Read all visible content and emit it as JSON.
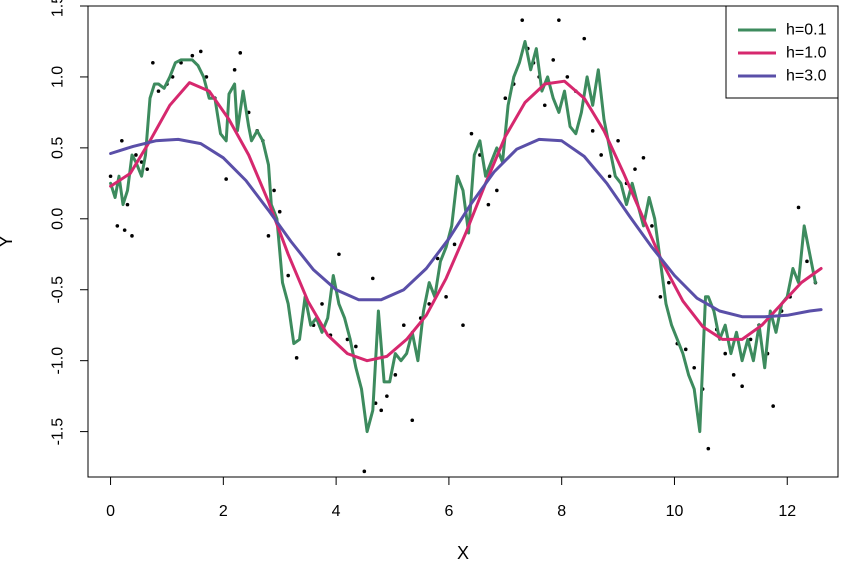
{
  "chart_data": {
    "type": "scatter",
    "title": "",
    "xlabel": "X",
    "ylabel": "Y",
    "xlim": [
      -0.4,
      12.9
    ],
    "ylim": [
      -1.82,
      1.5
    ],
    "x_ticks": [
      0,
      2,
      4,
      6,
      8,
      10,
      12
    ],
    "x_tick_labels": [
      "0",
      "2",
      "4",
      "6",
      "8",
      "10",
      "12"
    ],
    "y_ticks": [
      -1.5,
      -1.0,
      -0.5,
      0.0,
      0.5,
      1.0,
      1.5
    ],
    "y_tick_labels": [
      "-1.5",
      "-1.0",
      "-0.5",
      "0.0",
      "0.5",
      "1.0",
      "1.5"
    ],
    "grid": false,
    "legend_position": "top-right",
    "points": {
      "color": "#000000",
      "x": [
        0.0,
        0.12,
        0.2,
        0.25,
        0.3,
        0.38,
        0.45,
        0.55,
        0.65,
        0.75,
        0.85,
        1.0,
        1.1,
        1.25,
        1.45,
        1.6,
        1.7,
        1.85,
        2.05,
        2.2,
        2.3,
        2.45,
        2.6,
        2.7,
        2.8,
        2.9,
        3.0,
        3.15,
        3.3,
        3.45,
        3.6,
        3.75,
        3.9,
        4.05,
        4.2,
        4.35,
        4.5,
        4.65,
        4.7,
        4.8,
        4.9,
        5.05,
        5.2,
        5.35,
        5.5,
        5.65,
        5.8,
        5.95,
        6.1,
        6.25,
        6.4,
        6.55,
        6.7,
        6.85,
        7.0,
        7.15,
        7.3,
        7.4,
        7.5,
        7.6,
        7.7,
        7.85,
        7.95,
        8.1,
        8.25,
        8.4,
        8.55,
        8.7,
        8.85,
        9.0,
        9.15,
        9.3,
        9.45,
        9.6,
        9.75,
        9.9,
        10.05,
        10.2,
        10.35,
        10.5,
        10.6,
        10.75,
        10.9,
        11.05,
        11.2,
        11.35,
        11.5,
        11.65,
        11.75,
        11.9,
        12.05,
        12.2,
        12.35,
        12.5
      ],
      "y": [
        0.3,
        -0.05,
        0.55,
        -0.08,
        0.1,
        -0.12,
        0.45,
        0.4,
        0.35,
        1.1,
        0.9,
        0.95,
        1.0,
        1.1,
        1.15,
        1.18,
        1.0,
        0.85,
        0.28,
        1.05,
        1.17,
        0.75,
        0.62,
        0.55,
        -0.12,
        0.2,
        0.05,
        -0.4,
        -0.98,
        -0.6,
        -0.75,
        -0.6,
        -0.82,
        -0.25,
        -0.85,
        -0.9,
        -1.78,
        -0.42,
        -1.3,
        -1.35,
        -1.25,
        -1.1,
        -0.75,
        -1.42,
        -0.7,
        -0.6,
        -0.28,
        -0.55,
        -0.18,
        -0.75,
        0.6,
        0.45,
        0.1,
        0.2,
        0.85,
        0.95,
        1.4,
        1.2,
        1.1,
        1.0,
        0.8,
        1.12,
        1.4,
        1.0,
        0.9,
        1.27,
        0.62,
        0.45,
        0.3,
        0.55,
        0.25,
        0.35,
        0.43,
        -0.05,
        -0.55,
        -0.45,
        -0.88,
        -0.92,
        -1.05,
        -1.2,
        -1.62,
        -0.78,
        -0.95,
        -1.1,
        -1.18,
        -0.85,
        -0.75,
        -0.95,
        -1.32,
        -0.65,
        -0.55,
        0.08,
        -0.3,
        -0.45
      ]
    },
    "series": [
      {
        "name": "h=0.1",
        "color": "#3d8b5e",
        "x": [
          0.0,
          0.08,
          0.15,
          0.22,
          0.3,
          0.38,
          0.45,
          0.55,
          0.62,
          0.7,
          0.78,
          0.85,
          0.95,
          1.05,
          1.15,
          1.25,
          1.35,
          1.45,
          1.55,
          1.65,
          1.75,
          1.85,
          1.95,
          2.05,
          2.1,
          2.2,
          2.25,
          2.35,
          2.45,
          2.5,
          2.6,
          2.7,
          2.8,
          2.85,
          2.95,
          3.05,
          3.15,
          3.25,
          3.35,
          3.45,
          3.55,
          3.65,
          3.75,
          3.85,
          3.95,
          4.05,
          4.15,
          4.25,
          4.35,
          4.45,
          4.55,
          4.65,
          4.75,
          4.85,
          4.95,
          5.05,
          5.15,
          5.25,
          5.35,
          5.45,
          5.55,
          5.65,
          5.75,
          5.85,
          5.95,
          6.05,
          6.15,
          6.25,
          6.35,
          6.45,
          6.55,
          6.65,
          6.75,
          6.85,
          6.95,
          7.05,
          7.15,
          7.25,
          7.35,
          7.45,
          7.55,
          7.65,
          7.75,
          7.85,
          7.95,
          8.05,
          8.15,
          8.25,
          8.35,
          8.45,
          8.55,
          8.65,
          8.75,
          8.85,
          8.95,
          9.05,
          9.15,
          9.25,
          9.35,
          9.45,
          9.55,
          9.65,
          9.75,
          9.85,
          9.95,
          10.05,
          10.15,
          10.25,
          10.35,
          10.45,
          10.55,
          10.6,
          10.7,
          10.8,
          10.9,
          11.0,
          11.1,
          11.2,
          11.3,
          11.4,
          11.5,
          11.6,
          11.7,
          11.8,
          11.9,
          12.0,
          12.1,
          12.2,
          12.3,
          12.4,
          12.5
        ],
        "values": [
          0.25,
          0.15,
          0.3,
          0.1,
          0.2,
          0.45,
          0.4,
          0.3,
          0.45,
          0.85,
          0.95,
          0.95,
          0.92,
          1.0,
          1.1,
          1.12,
          1.12,
          1.12,
          1.08,
          1.0,
          0.85,
          0.85,
          0.6,
          0.55,
          0.88,
          0.95,
          0.62,
          0.9,
          0.65,
          0.55,
          0.62,
          0.55,
          0.38,
          0.1,
          0.0,
          -0.45,
          -0.6,
          -0.88,
          -0.85,
          -0.55,
          -0.75,
          -0.7,
          -0.8,
          -0.7,
          -0.4,
          -0.6,
          -0.7,
          -0.85,
          -1.05,
          -1.2,
          -1.5,
          -1.35,
          -0.65,
          -1.15,
          -1.15,
          -0.95,
          -1.0,
          -0.95,
          -0.8,
          -1.0,
          -0.65,
          -0.45,
          -0.55,
          -0.3,
          -0.2,
          -0.05,
          0.3,
          0.2,
          -0.1,
          0.45,
          0.55,
          0.3,
          0.4,
          0.5,
          0.4,
          0.8,
          1.0,
          1.1,
          1.25,
          1.05,
          1.2,
          0.9,
          1.0,
          0.85,
          0.75,
          0.9,
          0.65,
          0.6,
          0.75,
          1.0,
          0.8,
          1.05,
          0.7,
          0.5,
          0.3,
          0.25,
          0.1,
          0.25,
          0.1,
          -0.05,
          0.15,
          0.0,
          -0.3,
          -0.6,
          -0.75,
          -0.85,
          -0.95,
          -1.1,
          -1.2,
          -1.5,
          -0.55,
          -0.55,
          -0.65,
          -0.85,
          -0.75,
          -0.95,
          -0.8,
          -1.0,
          -0.85,
          -1.0,
          -0.75,
          -1.05,
          -0.65,
          -0.8,
          -0.6,
          -0.55,
          -0.35,
          -0.45,
          -0.05,
          -0.25,
          -0.45
        ]
      },
      {
        "name": "h=1.0",
        "color": "#d6286e",
        "x": [
          0.0,
          0.35,
          0.7,
          1.05,
          1.4,
          1.75,
          2.1,
          2.45,
          2.8,
          3.15,
          3.5,
          3.85,
          4.2,
          4.55,
          4.9,
          5.25,
          5.6,
          5.95,
          6.3,
          6.65,
          7.0,
          7.35,
          7.7,
          8.05,
          8.4,
          8.75,
          9.1,
          9.45,
          9.8,
          10.15,
          10.5,
          10.85,
          11.2,
          11.55,
          11.9,
          12.25,
          12.6
        ],
        "values": [
          0.23,
          0.32,
          0.55,
          0.8,
          0.96,
          0.9,
          0.7,
          0.45,
          0.12,
          -0.25,
          -0.58,
          -0.82,
          -0.95,
          -1.0,
          -0.97,
          -0.85,
          -0.68,
          -0.42,
          -0.1,
          0.25,
          0.58,
          0.82,
          0.95,
          0.97,
          0.85,
          0.62,
          0.32,
          0.0,
          -0.32,
          -0.58,
          -0.76,
          -0.85,
          -0.85,
          -0.75,
          -0.6,
          -0.45,
          -0.35
        ]
      },
      {
        "name": "h=3.0",
        "color": "#5a4fa8",
        "x": [
          0.0,
          0.4,
          0.8,
          1.2,
          1.6,
          2.0,
          2.4,
          2.8,
          3.2,
          3.6,
          4.0,
          4.4,
          4.8,
          5.2,
          5.6,
          6.0,
          6.4,
          6.8,
          7.2,
          7.6,
          8.0,
          8.4,
          8.8,
          9.2,
          9.6,
          10.0,
          10.4,
          10.8,
          11.2,
          11.6,
          12.0,
          12.4,
          12.6
        ],
        "values": [
          0.46,
          0.51,
          0.55,
          0.56,
          0.53,
          0.43,
          0.27,
          0.06,
          -0.16,
          -0.36,
          -0.5,
          -0.57,
          -0.57,
          -0.5,
          -0.35,
          -0.14,
          0.11,
          0.33,
          0.49,
          0.56,
          0.55,
          0.44,
          0.25,
          0.02,
          -0.2,
          -0.4,
          -0.56,
          -0.65,
          -0.69,
          -0.69,
          -0.68,
          -0.65,
          -0.64
        ]
      }
    ]
  }
}
